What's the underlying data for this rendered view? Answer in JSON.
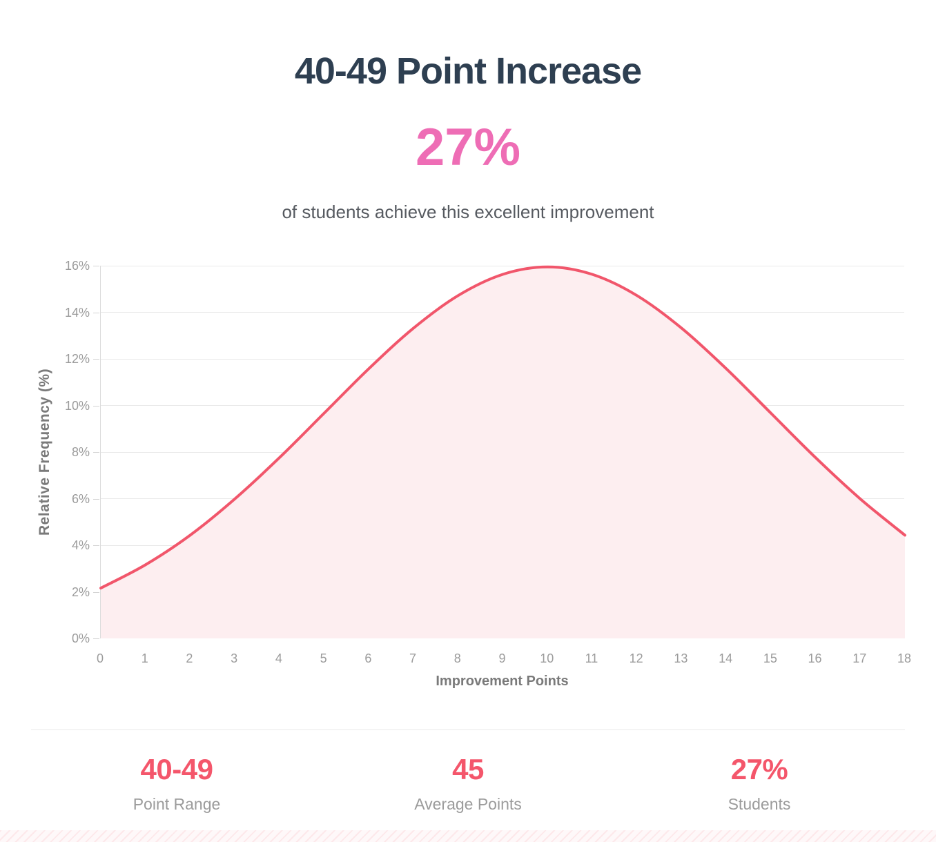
{
  "header": {
    "title": "40-49 Point Increase",
    "percent": "27%",
    "subtitle": "of students achieve this excellent improvement"
  },
  "chart_data": {
    "type": "area",
    "title": "",
    "xlabel": "Improvement Points",
    "ylabel": "Relative Frequency (%)",
    "x": [
      0,
      1,
      2,
      3,
      4,
      5,
      6,
      7,
      8,
      9,
      10,
      11,
      12,
      13,
      14,
      15,
      16,
      17,
      18
    ],
    "values": [
      2.16,
      3.16,
      4.43,
      5.99,
      7.76,
      9.67,
      11.58,
      13.32,
      14.72,
      15.63,
      15.95,
      15.63,
      14.72,
      13.32,
      11.58,
      9.67,
      7.76,
      5.99,
      4.43
    ],
    "xlim": [
      0,
      18
    ],
    "ylim": [
      0,
      16
    ],
    "ytick_labels": [
      "0%",
      "2%",
      "4%",
      "6%",
      "8%",
      "10%",
      "12%",
      "14%",
      "16%"
    ],
    "ytick_values": [
      0,
      2,
      4,
      6,
      8,
      10,
      12,
      14,
      16
    ],
    "grid": true,
    "legend": false,
    "line_color": "#f1566b",
    "fill_color": "#fdeef0"
  },
  "stats": [
    {
      "value": "40-49",
      "label": "Point Range"
    },
    {
      "value": "45",
      "label": "Average Points"
    },
    {
      "value": "27%",
      "label": "Students"
    }
  ],
  "colors": {
    "title_navy": "#2e3f51",
    "headline_pink": "#ee6db5",
    "stat_red": "#f4566b",
    "axis_text_gray": "#9b9b9b",
    "axis_title_gray": "#7a7a7a",
    "gridline_gray": "#e9e9e9"
  }
}
